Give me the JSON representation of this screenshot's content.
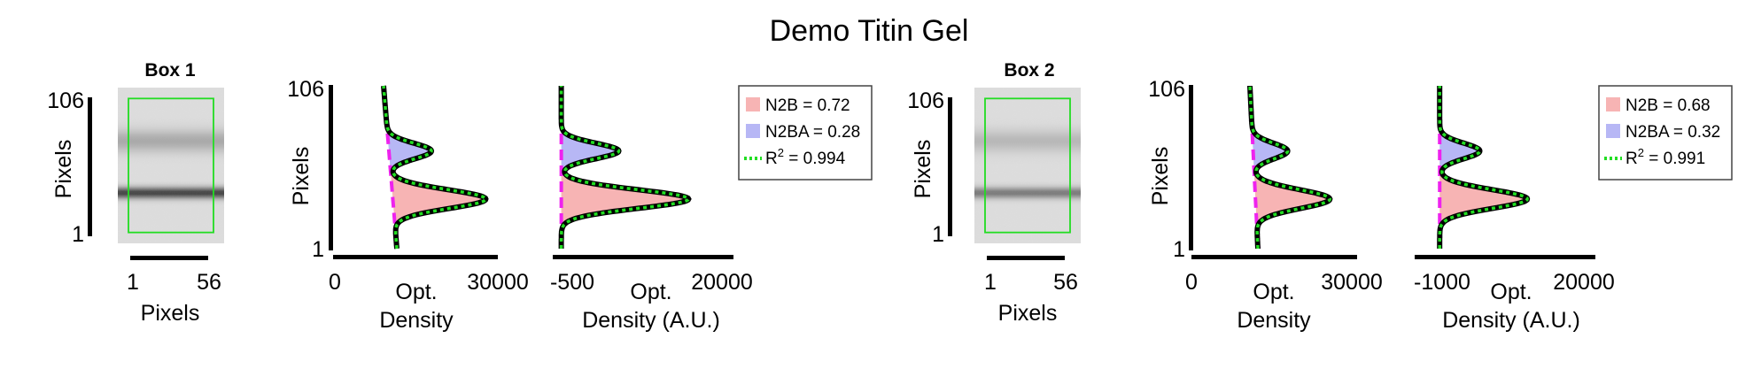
{
  "figure": {
    "title": "Demo Titin Gel"
  },
  "colors": {
    "n2b_fill": "#f7b4b4",
    "n2ba_fill": "#b7b7f5",
    "fit_line": "#22dd22",
    "raw_line": "#000000",
    "baseline": "#ee22ee",
    "roi_box": "#22dd22"
  },
  "chart_data": [
    {
      "type": "image",
      "title": "Box 1",
      "xlabel": "Pixels",
      "ylabel": "Pixels",
      "xticks": [
        "1",
        "56"
      ],
      "yticks": [
        "106",
        "1"
      ],
      "xlim": [
        1,
        56
      ],
      "ylim": [
        1,
        106
      ],
      "bands_y": [
        70,
        35
      ],
      "band_strength": [
        0.28,
        0.85
      ],
      "roi": {
        "x": [
          1,
          56
        ],
        "y": [
          1,
          106
        ]
      }
    },
    {
      "type": "area",
      "orientation": "vertical",
      "xlabel": [
        "Opt.",
        "Density"
      ],
      "ylabel": "Pixels",
      "xticks": [
        "0",
        "30000"
      ],
      "yticks": [
        "106",
        "1"
      ],
      "xlim": [
        0,
        30000
      ],
      "ylim": [
        1,
        106
      ],
      "baseline": {
        "top": 9000,
        "bottom": 11500
      },
      "peaks": [
        {
          "name": "N2BA",
          "center": 64,
          "width": 5,
          "height": 8000
        },
        {
          "name": "N2B",
          "center": 33,
          "width": 6,
          "height": 17500
        }
      ]
    },
    {
      "type": "area",
      "orientation": "vertical",
      "xlabel": [
        "Opt.",
        "Density (A.U.)"
      ],
      "ylabel": "",
      "xticks": [
        "-500",
        "20000"
      ],
      "yticks": [],
      "xlim": [
        -500,
        20000
      ],
      "ylim": [
        1,
        106
      ],
      "baseline": {
        "top": 0,
        "bottom": 0
      },
      "peaks": [
        {
          "name": "N2BA",
          "center": 64,
          "width": 5,
          "height": 7000
        },
        {
          "name": "N2B",
          "center": 33,
          "width": 6,
          "height": 15500
        }
      ],
      "legend": {
        "position": "right",
        "entries": [
          {
            "series": "N2B",
            "label": "N2B = 0.72"
          },
          {
            "series": "N2BA",
            "label": "N2BA = 0.28"
          },
          {
            "series": "fit",
            "label_main": "R",
            "label_sup": "2",
            "label_rest": " = 0.994"
          }
        ]
      }
    },
    {
      "type": "image",
      "title": "Box 2",
      "xlabel": "Pixels",
      "ylabel": "Pixels",
      "xticks": [
        "1",
        "56"
      ],
      "yticks": [
        "106",
        "1"
      ],
      "xlim": [
        1,
        56
      ],
      "ylim": [
        1,
        106
      ],
      "bands_y": [
        70,
        35
      ],
      "band_strength": [
        0.2,
        0.55
      ],
      "roi": {
        "x": [
          1,
          56
        ],
        "y": [
          1,
          106
        ]
      }
    },
    {
      "type": "area",
      "orientation": "vertical",
      "xlabel": [
        "Opt.",
        "Density"
      ],
      "ylabel": "Pixels",
      "xticks": [
        "0",
        "30000"
      ],
      "yticks": [
        "106",
        "1"
      ],
      "xlim": [
        0,
        30000
      ],
      "ylim": [
        1,
        106
      ],
      "baseline": {
        "top": 11000,
        "bottom": 12500
      },
      "peaks": [
        {
          "name": "N2BA",
          "center": 64,
          "width": 5,
          "height": 6500
        },
        {
          "name": "N2B",
          "center": 33,
          "width": 6,
          "height": 14000
        }
      ]
    },
    {
      "type": "area",
      "orientation": "vertical",
      "xlabel": [
        "Opt.",
        "Density (A.U.)"
      ],
      "ylabel": "",
      "xticks": [
        "-1000",
        "20000"
      ],
      "yticks": [],
      "xlim": [
        -1000,
        20000
      ],
      "ylim": [
        1,
        106
      ],
      "baseline": {
        "top": 0,
        "bottom": 0
      },
      "peaks": [
        {
          "name": "N2BA",
          "center": 64,
          "width": 5,
          "height": 5500
        },
        {
          "name": "N2B",
          "center": 33,
          "width": 6,
          "height": 12000
        }
      ],
      "legend": {
        "position": "right",
        "entries": [
          {
            "series": "N2B",
            "label": "N2B = 0.68"
          },
          {
            "series": "N2BA",
            "label": "N2BA = 0.32"
          },
          {
            "series": "fit",
            "label_main": "R",
            "label_sup": "2",
            "label_rest": " = 0.991"
          }
        ]
      }
    }
  ]
}
